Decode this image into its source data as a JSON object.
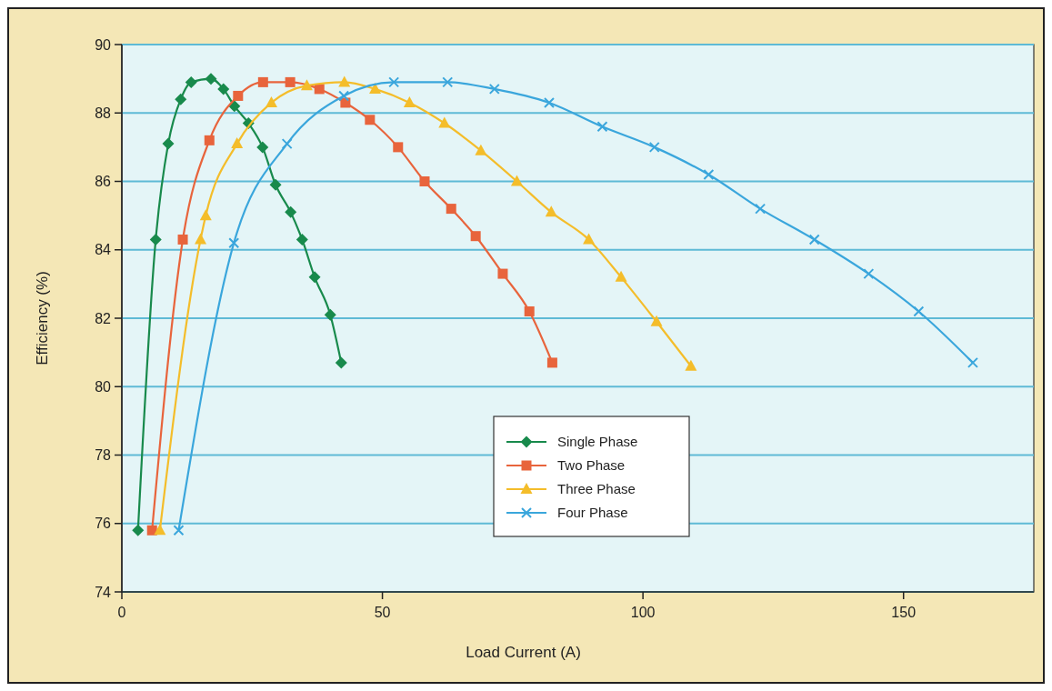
{
  "chart_data": {
    "type": "line",
    "xlabel": "Load Current (A)",
    "ylabel": "Efficiency (%)",
    "xlim": [
      0,
      175
    ],
    "xticks": [
      0,
      50,
      100,
      150
    ],
    "ylim": [
      74,
      90
    ],
    "yticks": [
      74,
      76,
      78,
      80,
      82,
      84,
      86,
      88,
      90
    ],
    "grid": "y",
    "legend": "bottom",
    "series": [
      {
        "name": "Single Phase",
        "color": "#188a4c",
        "marker": "diamond",
        "x": [
          3.1,
          6.5,
          8.9,
          11.3,
          13.3,
          17.1,
          19.5,
          21.6,
          24.3,
          27.0,
          29.5,
          32.4,
          34.6,
          37.0,
          40.0,
          42.1
        ],
        "values": [
          75.8,
          84.3,
          87.1,
          88.4,
          88.9,
          89.0,
          88.7,
          88.2,
          87.7,
          87.0,
          85.9,
          85.1,
          84.3,
          83.2,
          82.1,
          80.7
        ]
      },
      {
        "name": "Two Phase",
        "color": "#e8643c",
        "marker": "square",
        "x": [
          5.8,
          11.7,
          16.8,
          22.3,
          27.1,
          32.3,
          37.9,
          42.9,
          47.6,
          53.0,
          58.1,
          63.2,
          67.9,
          73.1,
          78.2,
          82.6
        ],
        "values": [
          75.8,
          84.3,
          87.2,
          88.5,
          88.9,
          88.9,
          88.7,
          88.3,
          87.8,
          87.0,
          86.0,
          85.2,
          84.4,
          83.3,
          82.2,
          80.7
        ]
      },
      {
        "name": "Three Phase",
        "color": "#f4bd2a",
        "marker": "triangle",
        "x": [
          7.3,
          15.1,
          16.1,
          22.1,
          28.7,
          35.5,
          42.7,
          48.6,
          55.2,
          61.9,
          68.9,
          75.8,
          82.4,
          89.6,
          95.8,
          102.6,
          109.2
        ],
        "values": [
          75.8,
          84.3,
          85.0,
          87.1,
          88.3,
          88.8,
          88.9,
          88.7,
          88.3,
          87.7,
          86.9,
          86.0,
          85.1,
          84.3,
          83.2,
          81.9,
          80.6
        ]
      },
      {
        "name": "Four Phase",
        "color": "#3aa6dc",
        "marker": "cross",
        "x": [
          10.9,
          21.5,
          31.7,
          42.6,
          52.2,
          62.5,
          71.5,
          82.0,
          92.2,
          102.2,
          112.6,
          122.5,
          132.9,
          143.3,
          152.9,
          163.3
        ],
        "values": [
          75.8,
          84.2,
          87.1,
          88.5,
          88.9,
          88.9,
          88.7,
          88.3,
          87.6,
          87.0,
          86.2,
          85.2,
          84.3,
          83.3,
          82.2,
          80.7
        ]
      }
    ]
  }
}
